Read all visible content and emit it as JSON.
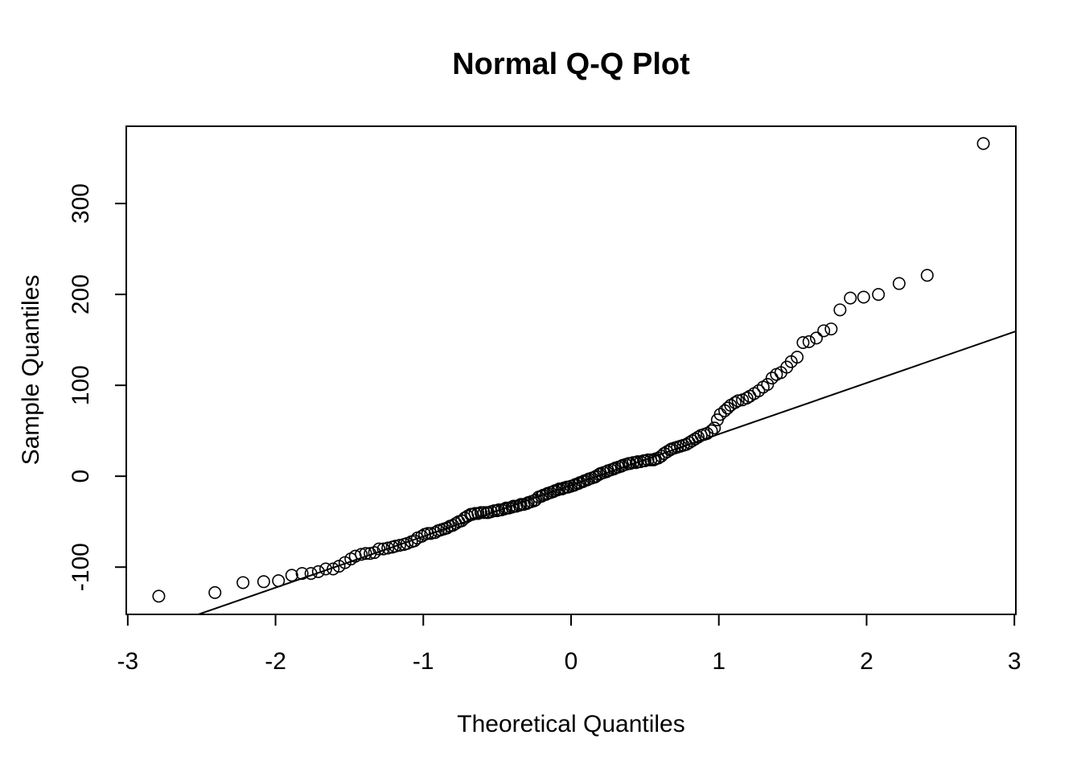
{
  "chart_data": {
    "type": "scatter",
    "title": "Normal Q-Q Plot",
    "xlabel": "Theoretical Quantiles",
    "ylabel": "Sample Quantiles",
    "xlim": [
      -3.01,
      3.01
    ],
    "ylim": [
      -152,
      385
    ],
    "x_ticks": [
      -3,
      -2,
      -1,
      0,
      1,
      2,
      3
    ],
    "y_ticks": [
      -100,
      0,
      100,
      200,
      300
    ],
    "x_tick_labels": [
      "-3",
      "-2",
      "-1",
      "0",
      "1",
      "2",
      "3"
    ],
    "y_tick_labels": [
      "-100",
      "0",
      "100",
      "200",
      "300"
    ],
    "grid": false,
    "legend": "none",
    "colors": {
      "points": "#000000",
      "line": "#000000",
      "background": "#ffffff"
    },
    "reference_line": {
      "slope": 56.3,
      "intercept": -10
    },
    "series": [
      {
        "marker": "open-circle",
        "points": [
          [
            -2.79,
            -132
          ],
          [
            -2.41,
            -128
          ],
          [
            -2.22,
            -117
          ],
          [
            -2.08,
            -116
          ],
          [
            -1.98,
            -115
          ],
          [
            -1.89,
            -109
          ],
          [
            -1.82,
            -107
          ],
          [
            -1.76,
            -107
          ],
          [
            -1.71,
            -105
          ],
          [
            -1.66,
            -102
          ],
          [
            -1.61,
            -102
          ],
          [
            -1.57,
            -99
          ],
          [
            -1.53,
            -95
          ],
          [
            -1.49,
            -91
          ],
          [
            -1.46,
            -88
          ],
          [
            -1.42,
            -86
          ],
          [
            -1.39,
            -85
          ],
          [
            -1.36,
            -85
          ],
          [
            -1.33,
            -84
          ],
          [
            -1.3,
            -80
          ],
          [
            -1.27,
            -80
          ],
          [
            -1.24,
            -79
          ],
          [
            -1.21,
            -78
          ],
          [
            -1.19,
            -77
          ],
          [
            -1.16,
            -76
          ],
          [
            -1.13,
            -75
          ],
          [
            -1.11,
            -74
          ],
          [
            -1.08,
            -72
          ],
          [
            -1.06,
            -71
          ],
          [
            -1.04,
            -68
          ],
          [
            -1.01,
            -66
          ],
          [
            -0.99,
            -64
          ],
          [
            -0.97,
            -63
          ],
          [
            -0.95,
            -63
          ],
          [
            -0.92,
            -62
          ],
          [
            -0.9,
            -60
          ],
          [
            -0.88,
            -59
          ],
          [
            -0.86,
            -58
          ],
          [
            -0.84,
            -57
          ],
          [
            -0.82,
            -55
          ],
          [
            -0.8,
            -54
          ],
          [
            -0.78,
            -52
          ],
          [
            -0.76,
            -50
          ],
          [
            -0.74,
            -49
          ],
          [
            -0.72,
            -46
          ],
          [
            -0.7,
            -44
          ],
          [
            -0.68,
            -42
          ],
          [
            -0.67,
            -42
          ],
          [
            -0.65,
            -41
          ],
          [
            -0.63,
            -41
          ],
          [
            -0.61,
            -40
          ],
          [
            -0.59,
            -40
          ],
          [
            -0.57,
            -40
          ],
          [
            -0.56,
            -40
          ],
          [
            -0.54,
            -39
          ],
          [
            -0.52,
            -38
          ],
          [
            -0.5,
            -38
          ],
          [
            -0.49,
            -37
          ],
          [
            -0.47,
            -37
          ],
          [
            -0.45,
            -36
          ],
          [
            -0.44,
            -35
          ],
          [
            -0.42,
            -35
          ],
          [
            -0.4,
            -34
          ],
          [
            -0.39,
            -33
          ],
          [
            -0.37,
            -33
          ],
          [
            -0.35,
            -32
          ],
          [
            -0.34,
            -31
          ],
          [
            -0.32,
            -31
          ],
          [
            -0.3,
            -30
          ],
          [
            -0.29,
            -29
          ],
          [
            -0.27,
            -28
          ],
          [
            -0.25,
            -27
          ],
          [
            -0.24,
            -26
          ],
          [
            -0.22,
            -23
          ],
          [
            -0.2,
            -22
          ],
          [
            -0.19,
            -21
          ],
          [
            -0.17,
            -20
          ],
          [
            -0.16,
            -19
          ],
          [
            -0.14,
            -18
          ],
          [
            -0.12,
            -17
          ],
          [
            -0.11,
            -16
          ],
          [
            -0.09,
            -15
          ],
          [
            -0.08,
            -14
          ],
          [
            -0.06,
            -14
          ],
          [
            -0.05,
            -13
          ],
          [
            -0.03,
            -12
          ],
          [
            -0.02,
            -12
          ],
          [
            0.0,
            -11
          ],
          [
            0.02,
            -10
          ],
          [
            0.03,
            -9
          ],
          [
            0.05,
            -8
          ],
          [
            0.06,
            -7
          ],
          [
            0.08,
            -6
          ],
          [
            0.09,
            -5
          ],
          [
            0.11,
            -4
          ],
          [
            0.12,
            -3
          ],
          [
            0.14,
            -2
          ],
          [
            0.16,
            -1
          ],
          [
            0.17,
            0
          ],
          [
            0.19,
            2
          ],
          [
            0.2,
            3
          ],
          [
            0.22,
            4
          ],
          [
            0.24,
            5
          ],
          [
            0.25,
            6
          ],
          [
            0.27,
            7
          ],
          [
            0.29,
            8
          ],
          [
            0.3,
            9
          ],
          [
            0.32,
            10
          ],
          [
            0.34,
            11
          ],
          [
            0.35,
            12
          ],
          [
            0.37,
            13
          ],
          [
            0.39,
            14
          ],
          [
            0.4,
            14
          ],
          [
            0.42,
            15
          ],
          [
            0.44,
            15
          ],
          [
            0.45,
            16
          ],
          [
            0.47,
            16
          ],
          [
            0.49,
            17
          ],
          [
            0.5,
            17
          ],
          [
            0.52,
            18
          ],
          [
            0.54,
            18
          ],
          [
            0.56,
            18
          ],
          [
            0.57,
            19
          ],
          [
            0.59,
            20
          ],
          [
            0.61,
            22
          ],
          [
            0.63,
            25
          ],
          [
            0.65,
            27
          ],
          [
            0.67,
            29
          ],
          [
            0.68,
            30
          ],
          [
            0.7,
            31
          ],
          [
            0.72,
            32
          ],
          [
            0.74,
            33
          ],
          [
            0.76,
            34
          ],
          [
            0.78,
            35
          ],
          [
            0.8,
            37
          ],
          [
            0.82,
            39
          ],
          [
            0.84,
            41
          ],
          [
            0.86,
            43
          ],
          [
            0.88,
            45
          ],
          [
            0.9,
            46
          ],
          [
            0.92,
            47
          ],
          [
            0.95,
            50
          ],
          [
            0.97,
            53
          ],
          [
            0.99,
            62
          ],
          [
            1.01,
            68
          ],
          [
            1.04,
            72
          ],
          [
            1.06,
            75
          ],
          [
            1.08,
            78
          ],
          [
            1.11,
            81
          ],
          [
            1.13,
            83
          ],
          [
            1.16,
            84
          ],
          [
            1.19,
            86
          ],
          [
            1.21,
            88
          ],
          [
            1.24,
            91
          ],
          [
            1.27,
            94
          ],
          [
            1.3,
            98
          ],
          [
            1.33,
            101
          ],
          [
            1.36,
            108
          ],
          [
            1.39,
            112
          ],
          [
            1.42,
            114
          ],
          [
            1.46,
            120
          ],
          [
            1.49,
            126
          ],
          [
            1.53,
            131
          ],
          [
            1.57,
            147
          ],
          [
            1.61,
            148
          ],
          [
            1.66,
            152
          ],
          [
            1.71,
            160
          ],
          [
            1.76,
            162
          ],
          [
            1.82,
            183
          ],
          [
            1.89,
            196
          ],
          [
            1.98,
            197
          ],
          [
            2.08,
            200
          ],
          [
            2.22,
            212
          ],
          [
            2.41,
            221
          ],
          [
            2.79,
            366
          ]
        ]
      }
    ]
  }
}
